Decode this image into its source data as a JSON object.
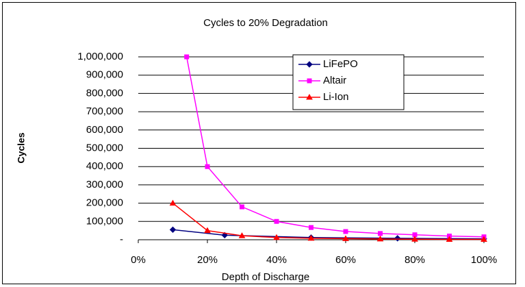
{
  "chart_data": {
    "type": "line",
    "title": "Cycles to 20% Degradation",
    "x_label": "Depth of Discharge",
    "y_label": "Cycles",
    "xlim": [
      0,
      100
    ],
    "xticks": [
      {
        "value": 0,
        "label": "0%"
      },
      {
        "value": 20,
        "label": "20%"
      },
      {
        "value": 40,
        "label": "40%"
      },
      {
        "value": 60,
        "label": "60%"
      },
      {
        "value": 80,
        "label": "80%"
      },
      {
        "value": 100,
        "label": "100%"
      }
    ],
    "ylim": [
      0,
      1000000
    ],
    "yticks": [
      {
        "value": 0,
        "label": "-"
      },
      {
        "value": 100000,
        "label": "100,000"
      },
      {
        "value": 200000,
        "label": "200,000"
      },
      {
        "value": 300000,
        "label": "300,000"
      },
      {
        "value": 400000,
        "label": "400,000"
      },
      {
        "value": 500000,
        "label": "500,000"
      },
      {
        "value": 600000,
        "label": "600,000"
      },
      {
        "value": 700000,
        "label": "700,000"
      },
      {
        "value": 800000,
        "label": "800,000"
      },
      {
        "value": 900000,
        "label": "900,000"
      },
      {
        "value": 1000000,
        "label": "1,000,000"
      }
    ],
    "grid": true,
    "legend": "upper right",
    "series": [
      {
        "name": "LiFePO",
        "color": "#000080",
        "marker": "diamond",
        "x": [
          10,
          25,
          50,
          75,
          100
        ],
        "values": [
          55000,
          25000,
          12000,
          8000,
          5000
        ]
      },
      {
        "name": "Altair",
        "color": "#ff00ff",
        "marker": "square",
        "x": [
          14,
          20,
          30,
          40,
          50,
          60,
          70,
          80,
          90,
          100
        ],
        "values": [
          1000000,
          400000,
          180000,
          100000,
          67000,
          45000,
          34000,
          27000,
          20000,
          16000
        ]
      },
      {
        "name": "Li-Ion",
        "color": "#ff0000",
        "marker": "triangle",
        "x": [
          10,
          20,
          30,
          40,
          50,
          60,
          70,
          80,
          90,
          100
        ],
        "values": [
          200000,
          50000,
          22000,
          12000,
          8000,
          6000,
          4000,
          3000,
          2000,
          2000
        ]
      }
    ]
  }
}
